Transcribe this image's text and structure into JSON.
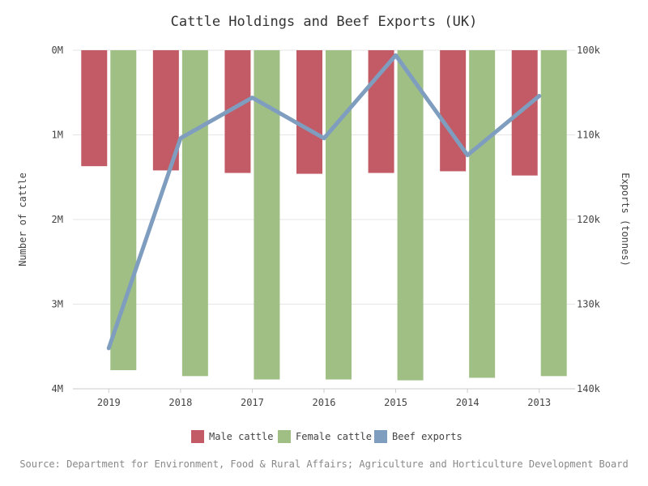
{
  "chart_data": {
    "type": "bar",
    "title": "Cattle Holdings and Beef Exports (UK)",
    "categories": [
      "2019",
      "2018",
      "2017",
      "2016",
      "2015",
      "2014",
      "2013"
    ],
    "ylabel_left": "Number of cattle",
    "ylabel_right": "Exports (tonnes)",
    "y_left_ticks": [
      "0M",
      "1M",
      "2M",
      "3M",
      "4M"
    ],
    "y_right_ticks": [
      "100k",
      "110k",
      "120k",
      "130k",
      "140k"
    ],
    "ylim_left": [
      0,
      4000000
    ],
    "ylim_right": [
      100000,
      140000
    ],
    "y_left_reversed": true,
    "y_right_reversed": true,
    "grid": true,
    "legend_position": "bottom",
    "series": [
      {
        "name": "Male cattle",
        "axis": "left",
        "kind": "bar",
        "color": "#c25b66",
        "values": [
          1370000,
          1420000,
          1450000,
          1460000,
          1450000,
          1430000,
          1480000
        ]
      },
      {
        "name": "Female cattle",
        "axis": "left",
        "kind": "bar",
        "color": "#a0bf85",
        "values": [
          3780000,
          3850000,
          3890000,
          3890000,
          3900000,
          3870000,
          3850000
        ]
      },
      {
        "name": "Beef exports",
        "axis": "right",
        "kind": "line",
        "color": "#7f9dbf",
        "values": [
          135200,
          110400,
          105600,
          110400,
          100600,
          112400,
          105400
        ]
      }
    ],
    "source": "Source: Department for Environment, Food & Rural Affairs; Agriculture and Horticulture Development Board"
  }
}
